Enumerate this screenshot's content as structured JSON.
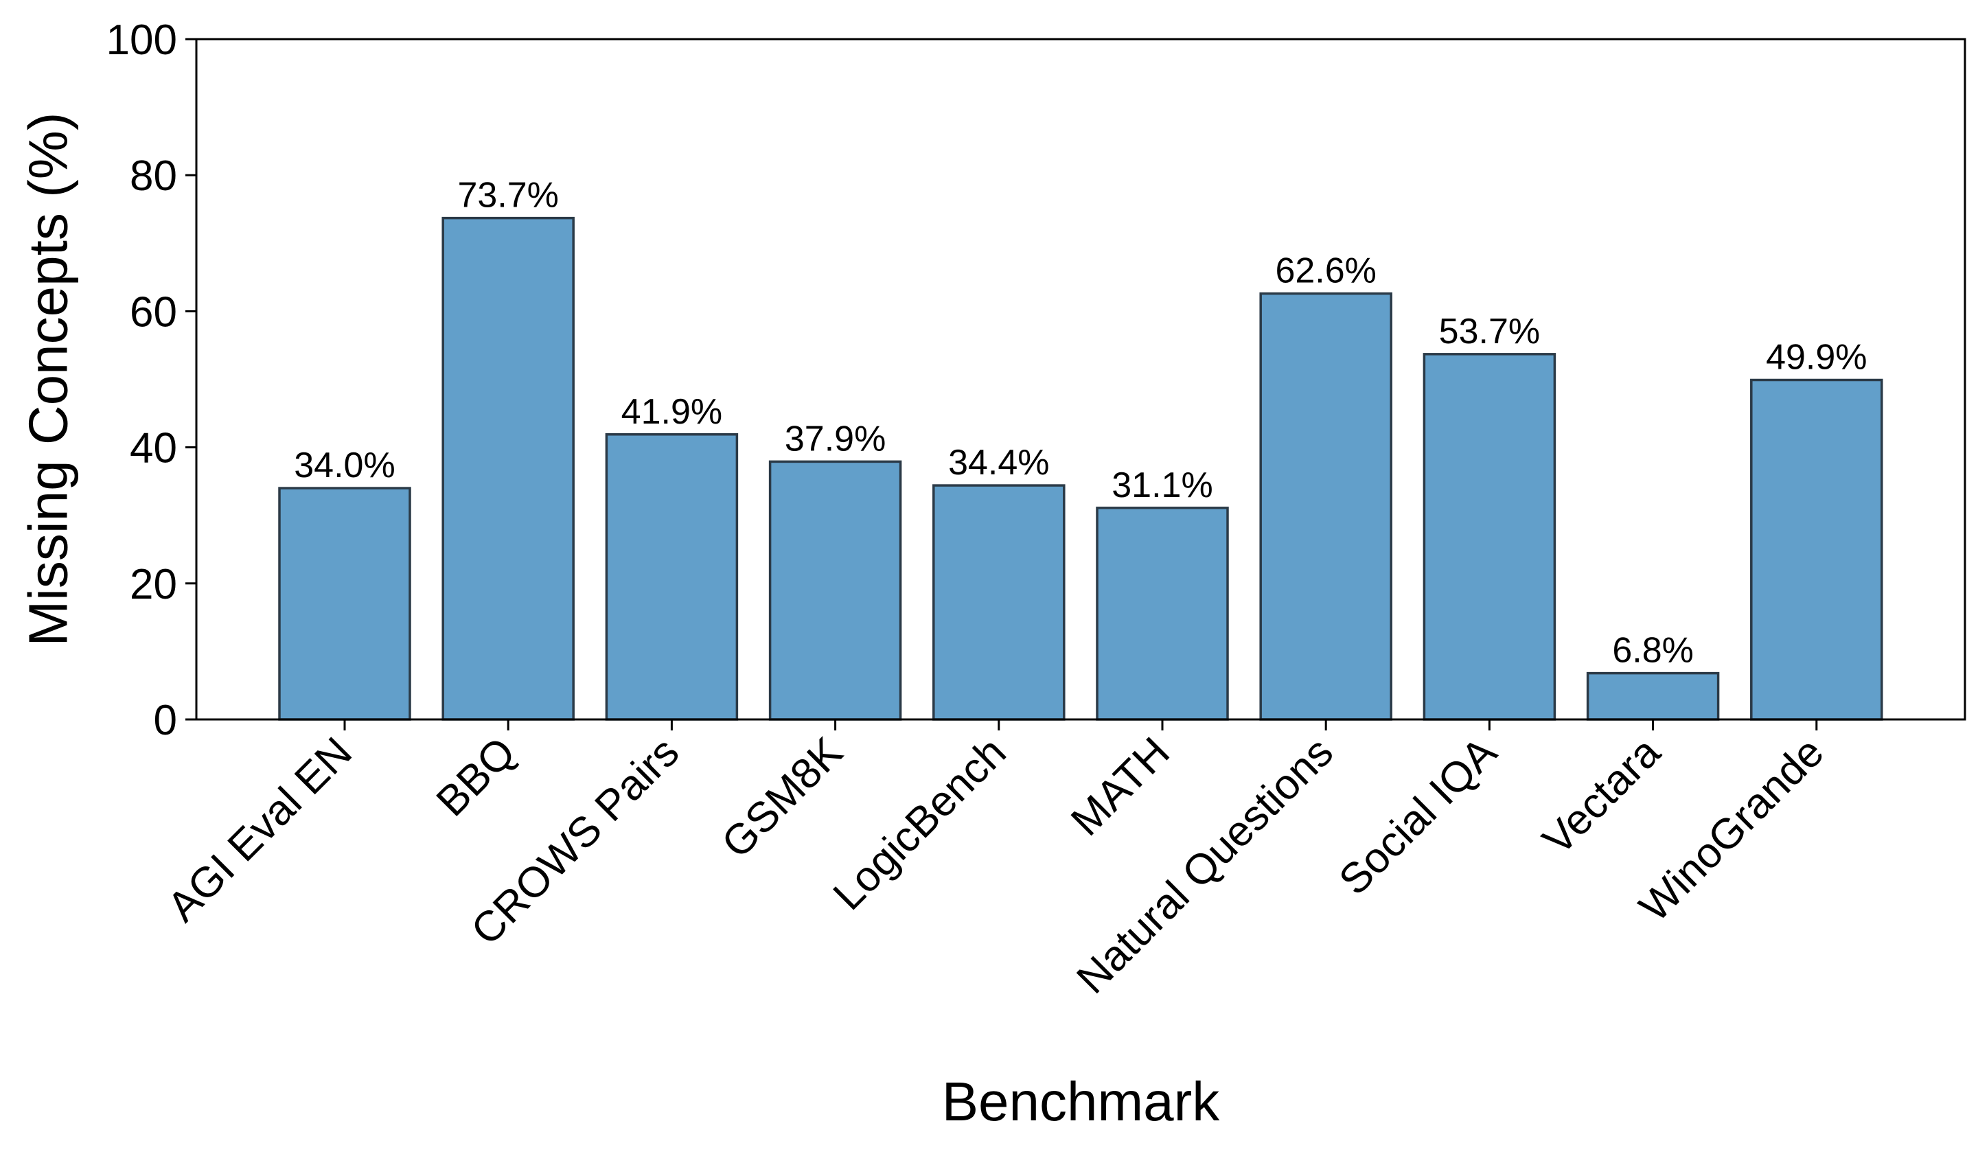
{
  "chart_data": {
    "type": "bar",
    "categories": [
      "AGI Eval EN",
      "BBQ",
      "CROWS Pairs",
      "GSM8K",
      "LogicBench",
      "MATH",
      "Natural Questions",
      "Social IQA",
      "Vectara",
      "WinoGrande"
    ],
    "values": [
      34.0,
      73.7,
      41.9,
      37.9,
      34.4,
      31.1,
      62.6,
      53.7,
      6.8,
      49.9
    ],
    "value_labels": [
      "34.0%",
      "73.7%",
      "41.9%",
      "37.9%",
      "34.4%",
      "31.1%",
      "62.6%",
      "53.7%",
      "6.8%",
      "49.9%"
    ],
    "xlabel": "Benchmark",
    "ylabel": "Missing Concepts (%)",
    "ylim": [
      0,
      100
    ],
    "yticks": [
      0,
      20,
      40,
      60,
      80,
      100
    ],
    "ytick_labels": [
      "0",
      "20",
      "40",
      "60",
      "80",
      "100"
    ],
    "grid": false,
    "bar_color": "#629fca",
    "edge_color": "#2b3a47"
  }
}
